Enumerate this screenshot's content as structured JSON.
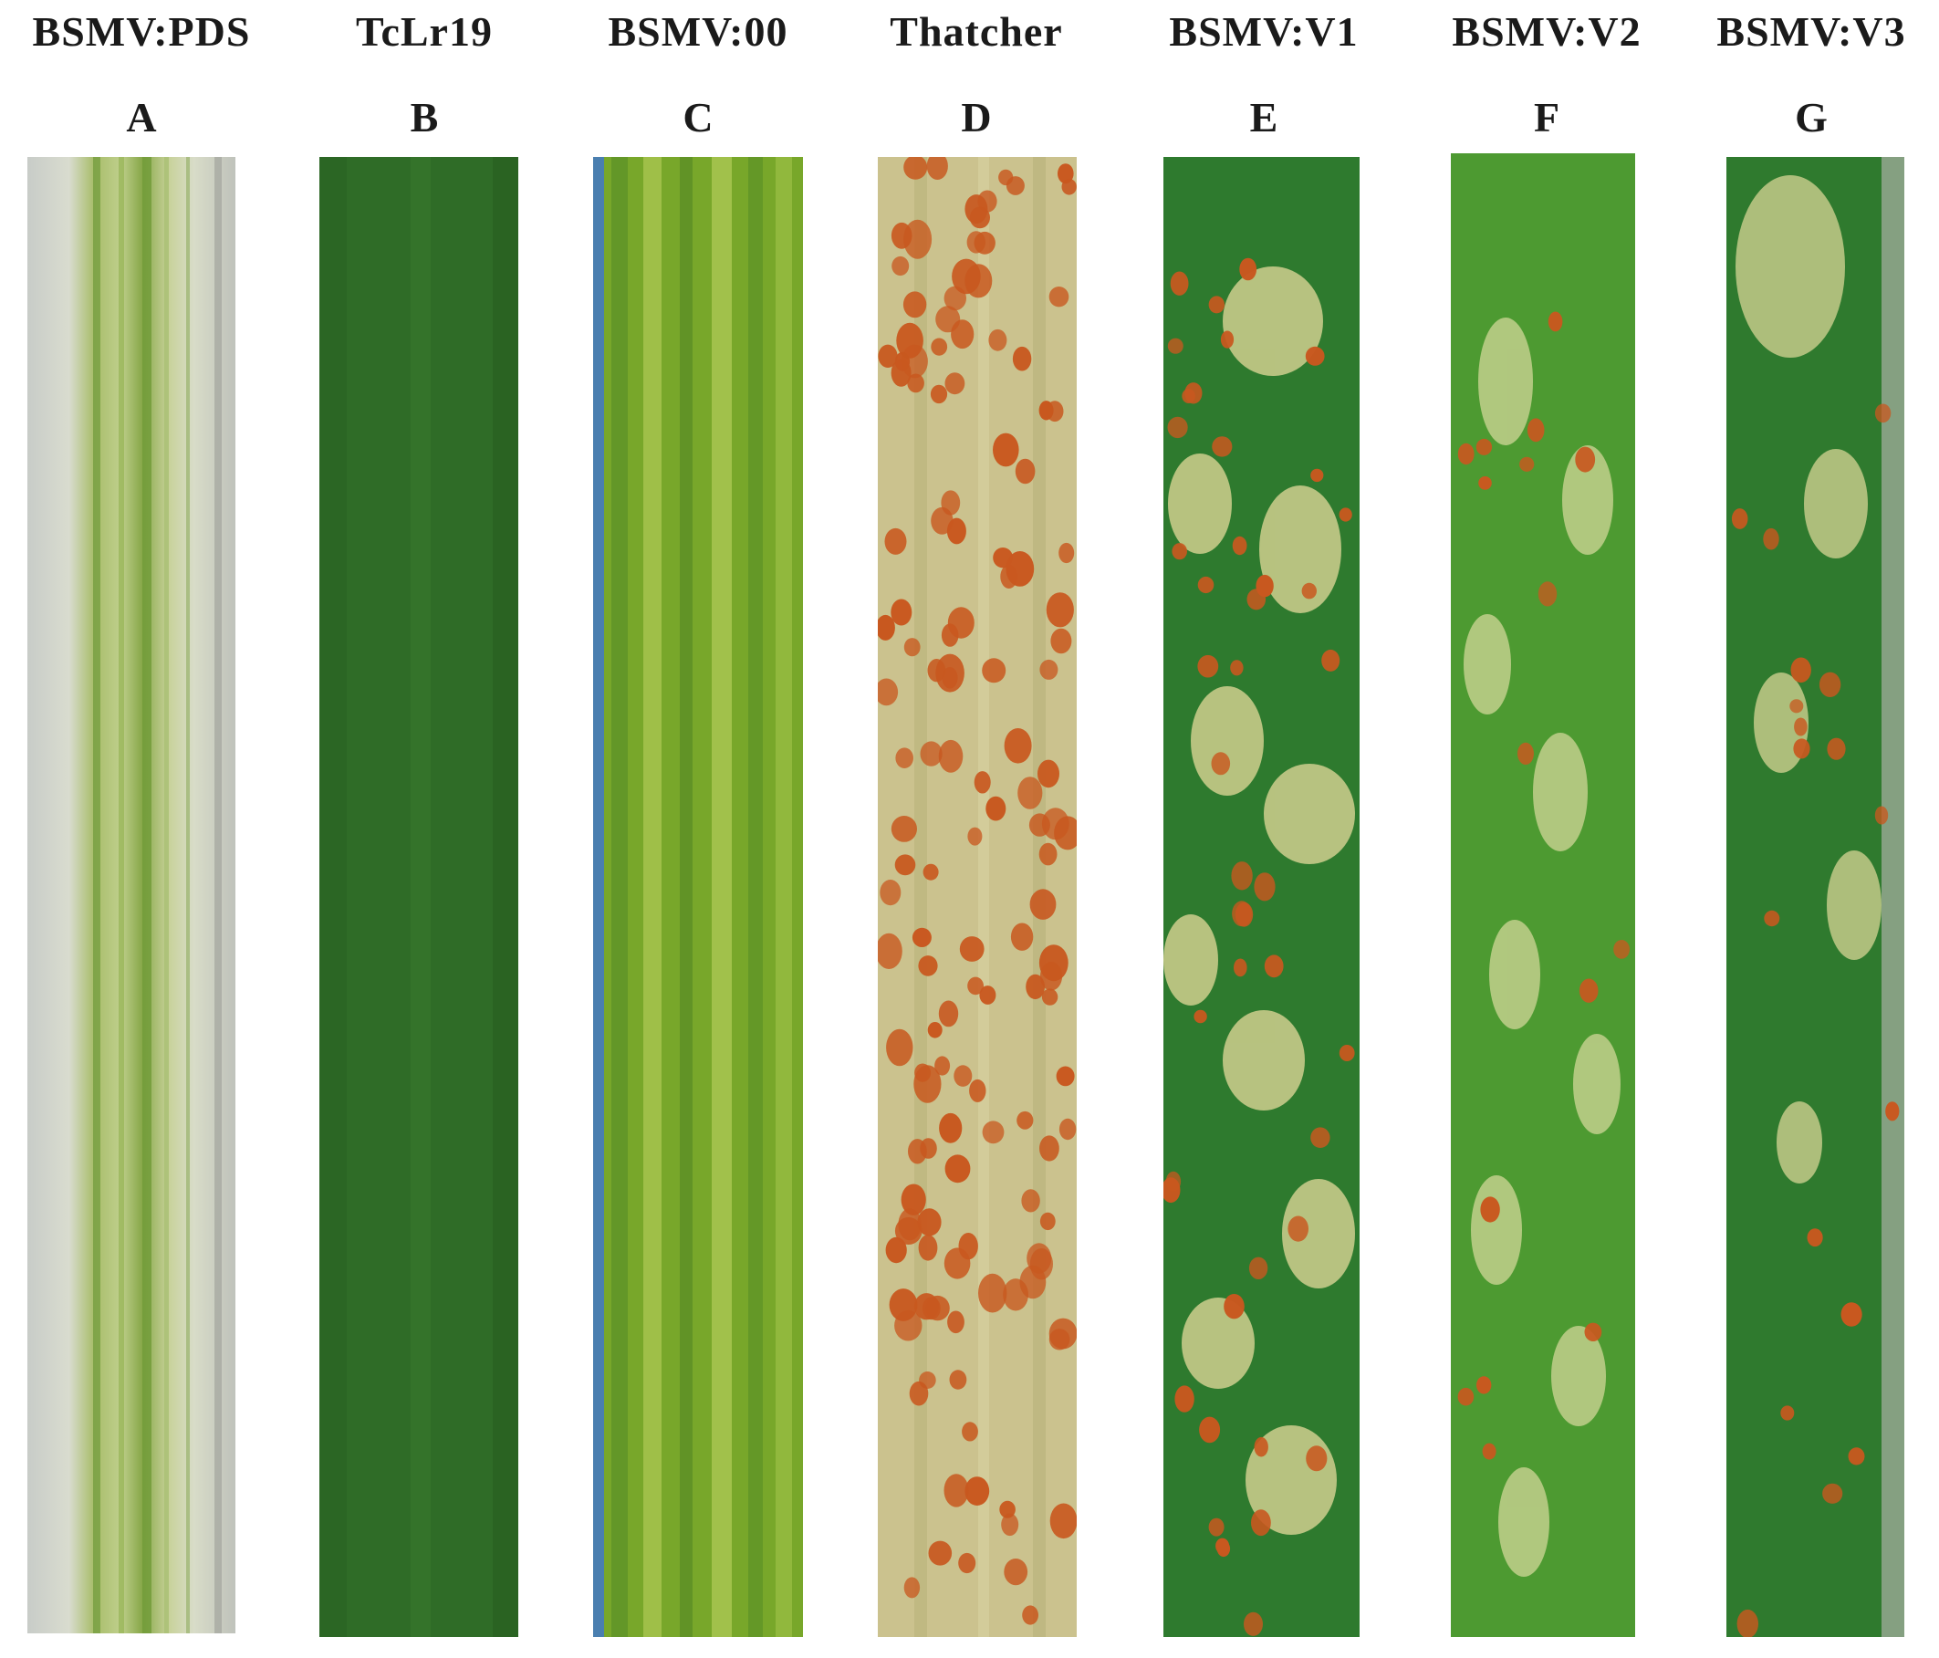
{
  "figure": {
    "panels": [
      {
        "label": "A",
        "treatment": "BSMV:PDS",
        "appearance": "photobleached pale leaf with green streaks",
        "base_color": "#b9c98a"
      },
      {
        "label": "B",
        "treatment": "TcLr19",
        "appearance": "uniform dark green leaf, no pustules",
        "base_color": "#2f6b26"
      },
      {
        "label": "C",
        "treatment": "BSMV:00",
        "appearance": "light green striped leaf, no pustules",
        "base_color": "#7fae2a"
      },
      {
        "label": "D",
        "treatment": "Thatcher",
        "appearance": "chlorotic leaf densely covered with orange rust pustules",
        "base_color": "#c9c08c"
      },
      {
        "label": "E",
        "treatment": "BSMV:V1",
        "appearance": "green leaf with chlorotic patches and scattered rust pustules",
        "base_color": "#2f7a2e"
      },
      {
        "label": "F",
        "treatment": "BSMV:V2",
        "appearance": "green leaf with pale patches and sparse rust pustules",
        "base_color": "#4f9a32"
      },
      {
        "label": "G",
        "treatment": "BSMV:V3",
        "appearance": "green leaf with few pale spots and sparse rust pustules",
        "base_color": "#2f7a2e"
      }
    ],
    "colors": {
      "pustule": "#c8581f",
      "chlorosis": "#d7d39a",
      "bleach": "#c9ccc2"
    }
  }
}
